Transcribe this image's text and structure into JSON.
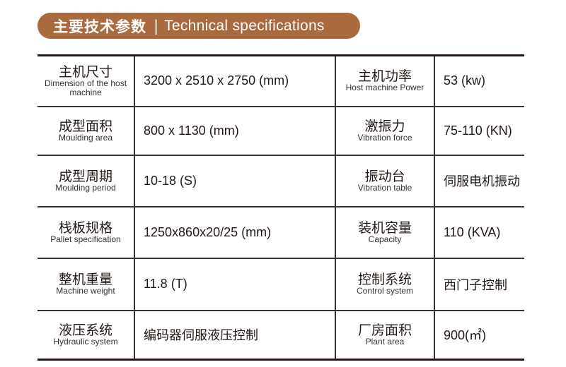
{
  "header": {
    "title_cn": "主要技术参数",
    "separator": "|",
    "title_en": "Technical specifications",
    "color": "#a96a3e"
  },
  "rows": [
    {
      "left": {
        "label_cn": "主机尺寸",
        "label_en": "Dimension of the host machine",
        "value": "3200 x 2510 x 2750 (mm)"
      },
      "right": {
        "label_cn": "主机功率",
        "label_en": "Host machine Power",
        "value": "53 (kw)"
      }
    },
    {
      "left": {
        "label_cn": "成型面积",
        "label_en": "Moulding area",
        "value": "800 x 1130 (mm)"
      },
      "right": {
        "label_cn": "激振力",
        "label_en": "Vibration force",
        "value": "75-110 (KN)"
      }
    },
    {
      "left": {
        "label_cn": "成型周期",
        "label_en": "Moulding period",
        "value": "10-18 (S)"
      },
      "right": {
        "label_cn": "振动台",
        "label_en": "Vibration table",
        "value": "伺服电机振动"
      }
    },
    {
      "left": {
        "label_cn": "栈板规格",
        "label_en": "Pallet specification",
        "value": "1250x860x20/25 (mm)"
      },
      "right": {
        "label_cn": "装机容量",
        "label_en": "Capacity",
        "value": "110 (KVA)"
      }
    },
    {
      "left": {
        "label_cn": "整机重量",
        "label_en": "Machine weight",
        "value": "11.8 (T)"
      },
      "right": {
        "label_cn": "控制系统",
        "label_en": "Control system",
        "value": "西门子控制"
      }
    },
    {
      "left": {
        "label_cn": "液压系统",
        "label_en": "Hydraulic system",
        "value": "编码器伺服液压控制"
      },
      "right": {
        "label_cn": "厂房面积",
        "label_en": "Plant area",
        "value": "900(㎡)"
      }
    }
  ]
}
